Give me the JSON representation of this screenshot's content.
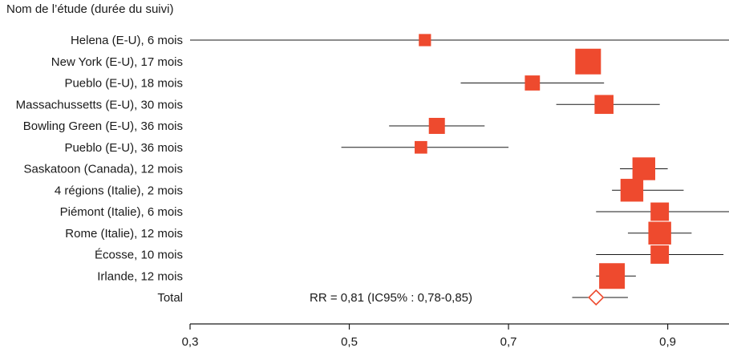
{
  "chart_data": {
    "type": "forest",
    "column_header": "Nom de l’étude (durée du suivi)",
    "xticks": [
      0.3,
      0.5,
      0.7,
      0.9
    ],
    "xtick_labels": [
      "0,3",
      "0,5",
      "0,7",
      "0,9"
    ],
    "xlim": [
      0.3,
      0.98
    ],
    "reference_line": 1.0,
    "colors": {
      "marker": "#ee4a2e",
      "line": "#1a1a1a",
      "diamond_stroke": "#ee4a2e"
    },
    "studies": [
      {
        "label": "Helena (E-U), 6 mois",
        "rr": 0.595,
        "ci_low": 0.3,
        "ci_high": 0.98,
        "weight": 0.3
      },
      {
        "label": "New York (E-U), 17 mois",
        "rr": 0.8,
        "ci_low": 0.79,
        "ci_high": 0.81,
        "weight": 1.0
      },
      {
        "label": "Pueblo (E-U), 18 mois",
        "rr": 0.73,
        "ci_low": 0.64,
        "ci_high": 0.82,
        "weight": 0.45
      },
      {
        "label": "Massachussetts (E-U), 30 mois",
        "rr": 0.82,
        "ci_low": 0.76,
        "ci_high": 0.89,
        "weight": 0.65
      },
      {
        "label": "Bowling Green (E-U), 36 mois",
        "rr": 0.61,
        "ci_low": 0.55,
        "ci_high": 0.67,
        "weight": 0.5
      },
      {
        "label": "Pueblo (E-U), 36 mois",
        "rr": 0.59,
        "ci_low": 0.49,
        "ci_high": 0.7,
        "weight": 0.32
      },
      {
        "label": "Saskatoon (Canada), 12 mois",
        "rr": 0.87,
        "ci_low": 0.84,
        "ci_high": 0.9,
        "weight": 0.85
      },
      {
        "label": "4 régions (Italie), 2 mois",
        "rr": 0.855,
        "ci_low": 0.83,
        "ci_high": 0.92,
        "weight": 0.85
      },
      {
        "label": "Piémont (Italie), 6 mois",
        "rr": 0.89,
        "ci_low": 0.81,
        "ci_high": 0.98,
        "weight": 0.62
      },
      {
        "label": "Rome (Italie), 12 mois",
        "rr": 0.89,
        "ci_low": 0.85,
        "ci_high": 0.93,
        "weight": 0.85
      },
      {
        "label": "Écosse, 10 mois",
        "rr": 0.89,
        "ci_low": 0.81,
        "ci_high": 0.97,
        "weight": 0.62
      },
      {
        "label": "Irlande, 12 mois",
        "rr": 0.83,
        "ci_low": 0.81,
        "ci_high": 0.86,
        "weight": 1.0
      }
    ],
    "total": {
      "label": "Total",
      "rr": 0.81,
      "ci_low": 0.78,
      "ci_high": 0.85,
      "annotation": "RR = 0,81 (IC95% : 0,78-0,85)"
    }
  }
}
